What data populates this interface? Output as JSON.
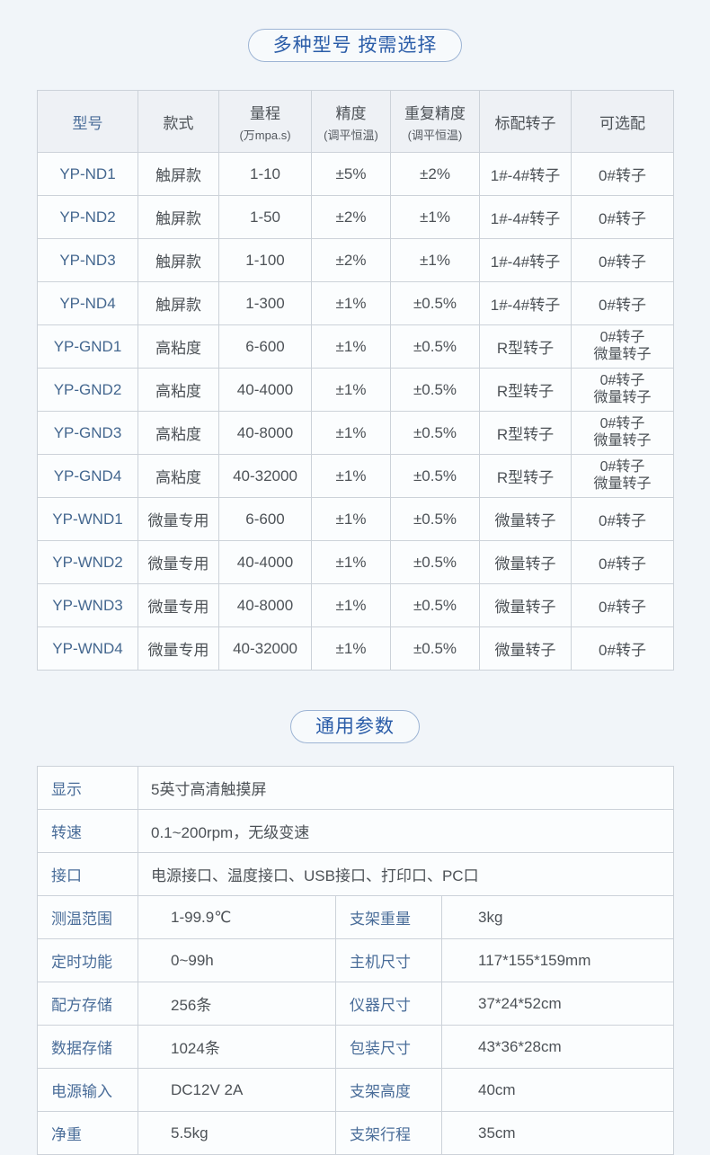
{
  "colors": {
    "page_bg": "#f1f5f9",
    "accent_blue": "#2a5ca8",
    "label_blue": "#4a6d99",
    "model_blue": "#44678f",
    "text_dark": "#4d5257",
    "border": "#ccd2d9",
    "header_bg": "#eef1f5",
    "cell_bg": "#fbfdfe"
  },
  "models_section": {
    "title": "多种型号 按需选择",
    "table": {
      "headers": [
        {
          "main": "型号",
          "sub": ""
        },
        {
          "main": "款式",
          "sub": ""
        },
        {
          "main": "量程",
          "sub": "(万mpa.s)"
        },
        {
          "main": "精度",
          "sub": "(调平恒温)"
        },
        {
          "main": "重复精度",
          "sub": "(调平恒温)"
        },
        {
          "main": "标配转子",
          "sub": ""
        },
        {
          "main": "可选配",
          "sub": ""
        }
      ],
      "rows": [
        [
          "YP-ND1",
          "触屏款",
          "1-10",
          "±5%",
          "±2%",
          "1#-4#转子",
          "0#转子"
        ],
        [
          "YP-ND2",
          "触屏款",
          "1-50",
          "±2%",
          "±1%",
          "1#-4#转子",
          "0#转子"
        ],
        [
          "YP-ND3",
          "触屏款",
          "1-100",
          "±2%",
          "±1%",
          "1#-4#转子",
          "0#转子"
        ],
        [
          "YP-ND4",
          "触屏款",
          "1-300",
          "±1%",
          "±0.5%",
          "1#-4#转子",
          "0#转子"
        ],
        [
          "YP-GND1",
          "高粘度",
          "6-600",
          "±1%",
          "±0.5%",
          "R型转子",
          [
            "0#转子",
            "微量转子"
          ]
        ],
        [
          "YP-GND2",
          "高粘度",
          "40-4000",
          "±1%",
          "±0.5%",
          "R型转子",
          [
            "0#转子",
            "微量转子"
          ]
        ],
        [
          "YP-GND3",
          "高粘度",
          "40-8000",
          "±1%",
          "±0.5%",
          "R型转子",
          [
            "0#转子",
            "微量转子"
          ]
        ],
        [
          "YP-GND4",
          "高粘度",
          "40-32000",
          "±1%",
          "±0.5%",
          "R型转子",
          [
            "0#转子",
            "微量转子"
          ]
        ],
        [
          "YP-WND1",
          "微量专用",
          "6-600",
          "±1%",
          "±0.5%",
          "微量转子",
          "0#转子"
        ],
        [
          "YP-WND2",
          "微量专用",
          "40-4000",
          "±1%",
          "±0.5%",
          "微量转子",
          "0#转子"
        ],
        [
          "YP-WND3",
          "微量专用",
          "40-8000",
          "±1%",
          "±0.5%",
          "微量转子",
          "0#转子"
        ],
        [
          "YP-WND4",
          "微量专用",
          "40-32000",
          "±1%",
          "±0.5%",
          "微量转子",
          "0#转子"
        ]
      ]
    }
  },
  "params_section": {
    "title": "通用参数",
    "rows": [
      [
        "显示",
        "5英寸高清触摸屏"
      ],
      [
        "转速",
        "0.1~200rpm，无级变速"
      ],
      [
        "接口",
        "电源接口、温度接口、USB接口、打印口、PC口"
      ],
      [
        "测温范围",
        "1-99.9℃",
        "支架重量",
        "3kg"
      ],
      [
        "定时功能",
        "0~99h",
        "主机尺寸",
        "117*155*159mm"
      ],
      [
        "配方存储",
        "256条",
        "仪器尺寸",
        "37*24*52cm"
      ],
      [
        "数据存储",
        "1024条",
        "包装尺寸",
        "43*36*28cm"
      ],
      [
        "电源输入",
        "DC12V 2A",
        "支架高度",
        "40cm"
      ],
      [
        "净重",
        "5.5kg",
        "支架行程",
        "35cm"
      ]
    ]
  }
}
